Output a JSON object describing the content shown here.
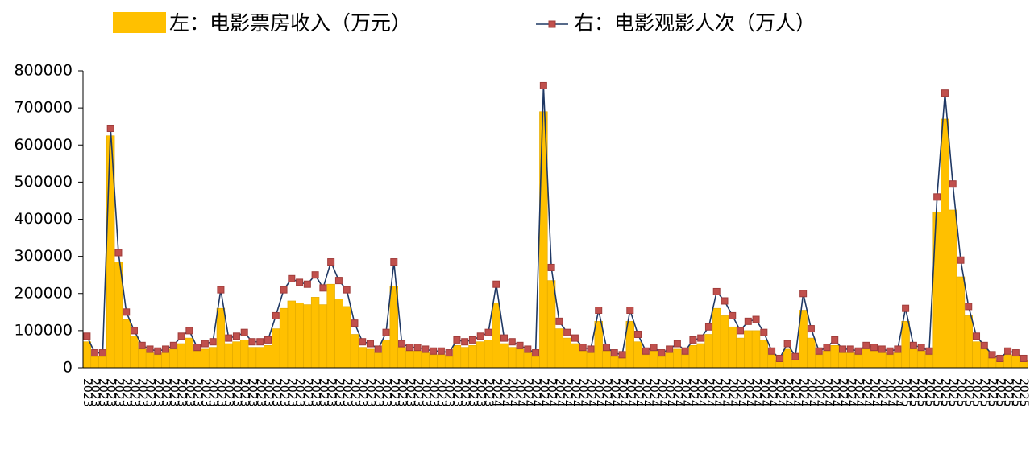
{
  "chart_data": {
    "type": "combo",
    "categories": [
      "2023",
      "2023",
      "2023",
      "2023",
      "2023",
      "2023",
      "2023",
      "2023",
      "2023",
      "2023",
      "2023",
      "2023",
      "2023",
      "2023",
      "2023",
      "2023",
      "2023",
      "2023",
      "2023",
      "2023",
      "2023",
      "2023",
      "2023",
      "2023",
      "2023",
      "2023",
      "2023",
      "2023",
      "2023",
      "2023",
      "2023",
      "2023",
      "2023",
      "2023",
      "2023",
      "2023",
      "2023",
      "2023",
      "2023",
      "2023",
      "2023",
      "2023",
      "2023",
      "2023",
      "2023",
      "2023",
      "2023",
      "2023",
      "2023",
      "2023",
      "2023",
      "2023",
      "2024",
      "2024",
      "2024",
      "2024",
      "2024",
      "2024",
      "2024",
      "2024",
      "2024",
      "2024",
      "2024",
      "2024",
      "2024",
      "2024",
      "2024",
      "2024",
      "2024",
      "2024",
      "2024",
      "2024",
      "2024",
      "2024",
      "2024",
      "2024",
      "2024",
      "2024",
      "2024",
      "2024",
      "2024",
      "2024",
      "2024",
      "2024",
      "2024",
      "2024",
      "2024",
      "2024",
      "2024",
      "2024",
      "2024",
      "2024",
      "2024",
      "2024",
      "2024",
      "2024",
      "2024",
      "2024",
      "2024",
      "2024",
      "2024",
      "2024",
      "2024",
      "2024",
      "2025",
      "2025",
      "2025",
      "2025",
      "2025",
      "2025",
      "2025",
      "2025",
      "2025",
      "2025",
      "2025",
      "2025",
      "2025",
      "2025",
      "2025",
      "2025"
    ],
    "series": [
      {
        "name": "左：电影票房收入（万元）",
        "type": "bar",
        "color": "#FFC000",
        "values": [
          70000,
          30000,
          30000,
          625000,
          285000,
          130000,
          85000,
          50000,
          40000,
          35000,
          40000,
          50000,
          65000,
          80000,
          45000,
          50000,
          55000,
          160000,
          65000,
          70000,
          75000,
          55000,
          55000,
          60000,
          105000,
          160000,
          180000,
          175000,
          170000,
          190000,
          170000,
          225000,
          185000,
          165000,
          90000,
          55000,
          50000,
          40000,
          75000,
          220000,
          55000,
          45000,
          45000,
          40000,
          35000,
          35000,
          30000,
          60000,
          55000,
          60000,
          70000,
          75000,
          175000,
          65000,
          55000,
          50000,
          40000,
          30000,
          690000,
          235000,
          105000,
          80000,
          65000,
          45000,
          40000,
          125000,
          45000,
          30000,
          28000,
          125000,
          70000,
          35000,
          45000,
          30000,
          40000,
          50000,
          35000,
          60000,
          65000,
          90000,
          160000,
          140000,
          110000,
          80000,
          100000,
          100000,
          75000,
          35000,
          20000,
          50000,
          22000,
          155000,
          80000,
          35000,
          45000,
          60000,
          40000,
          40000,
          35000,
          50000,
          45000,
          40000,
          35000,
          40000,
          125000,
          50000,
          45000,
          35000,
          420000,
          670000,
          425000,
          245000,
          140000,
          70000,
          50000,
          28000,
          20000,
          35000,
          32000,
          20000
        ]
      },
      {
        "name": "右：电影观影人次（万人）",
        "type": "line",
        "color": "#1F3864",
        "marker_color": "#C0504D",
        "values": [
          85000,
          40000,
          40000,
          645000,
          310000,
          150000,
          100000,
          60000,
          50000,
          45000,
          50000,
          60000,
          85000,
          100000,
          55000,
          65000,
          70000,
          210000,
          80000,
          85000,
          95000,
          70000,
          70000,
          75000,
          140000,
          210000,
          240000,
          230000,
          225000,
          250000,
          215000,
          285000,
          235000,
          210000,
          120000,
          70000,
          65000,
          50000,
          95000,
          285000,
          65000,
          55000,
          55000,
          50000,
          45000,
          45000,
          40000,
          75000,
          70000,
          75000,
          85000,
          95000,
          225000,
          80000,
          70000,
          60000,
          50000,
          40000,
          760000,
          270000,
          125000,
          95000,
          80000,
          55000,
          50000,
          155000,
          55000,
          40000,
          35000,
          155000,
          90000,
          45000,
          55000,
          40000,
          50000,
          65000,
          45000,
          75000,
          80000,
          110000,
          205000,
          180000,
          140000,
          100000,
          125000,
          130000,
          95000,
          45000,
          25000,
          65000,
          30000,
          200000,
          105000,
          45000,
          55000,
          75000,
          50000,
          50000,
          45000,
          60000,
          55000,
          50000,
          45000,
          50000,
          160000,
          60000,
          55000,
          45000,
          460000,
          740000,
          495000,
          290000,
          165000,
          85000,
          60000,
          35000,
          25000,
          45000,
          40000,
          25000
        ]
      }
    ],
    "ylim": [
      0,
      800000
    ],
    "yticks": [
      0,
      100000,
      200000,
      300000,
      400000,
      500000,
      600000,
      700000,
      800000
    ],
    "legend": "top"
  }
}
